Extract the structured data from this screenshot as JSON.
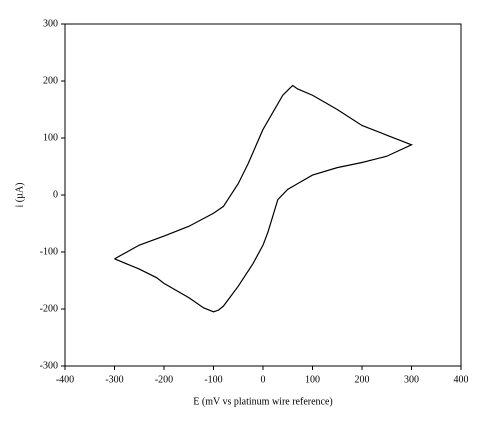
{
  "chart_data": {
    "type": "line",
    "x_label": "E (mV vs platinum wire reference)",
    "y_label": "i (µA)",
    "xlim": [
      -400,
      400
    ],
    "xticks": [
      -400,
      -300,
      -200,
      -100,
      0,
      100,
      200,
      300,
      400
    ],
    "ylim": [
      -300,
      300
    ],
    "yticks": [
      -300,
      -200,
      -100,
      0,
      100,
      200,
      300
    ],
    "grid": false,
    "series": [
      {
        "color": "#000000",
        "x": [
          -300,
          -250,
          -200,
          -150,
          -100,
          -80,
          -50,
          -30,
          0,
          20,
          40,
          55,
          60,
          70,
          100,
          150,
          200,
          250,
          300,
          250,
          200,
          150,
          100,
          70,
          50,
          30,
          10,
          0,
          -20,
          -50,
          -80,
          -90,
          -100,
          -120,
          -150,
          -200,
          -215,
          -250,
          -300
        ],
        "values": [
          -112,
          -88,
          -72,
          -55,
          -32,
          -20,
          20,
          55,
          115,
          145,
          175,
          188,
          192,
          186,
          175,
          150,
          122,
          105,
          88,
          68,
          57,
          48,
          35,
          20,
          10,
          -8,
          -65,
          -88,
          -120,
          -160,
          -195,
          -202,
          -205,
          -198,
          -180,
          -155,
          -145,
          -130,
          -112
        ]
      }
    ]
  }
}
